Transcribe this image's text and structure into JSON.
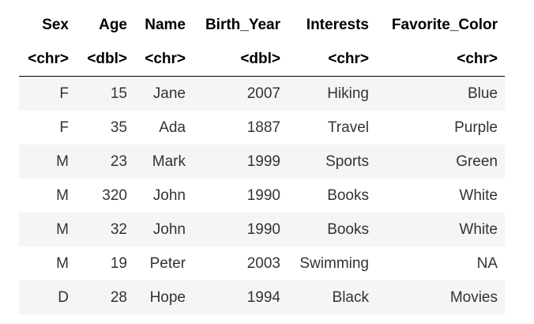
{
  "table": {
    "columns": [
      "Sex",
      "Age",
      "Name",
      "Birth_Year",
      "Interests",
      "Favorite_Color"
    ],
    "types": [
      "<chr>",
      "<dbl>",
      "<chr>",
      "<dbl>",
      "<chr>",
      "<chr>"
    ],
    "rows": [
      [
        "F",
        "15",
        "Jane",
        "2007",
        "Hiking",
        "Blue"
      ],
      [
        "F",
        "35",
        "Ada",
        "1887",
        "Travel",
        "Purple"
      ],
      [
        "M",
        "23",
        "Mark",
        "1999",
        "Sports",
        "Green"
      ],
      [
        "M",
        "320",
        "John",
        "1990",
        "Books",
        "White"
      ],
      [
        "M",
        "32",
        "John",
        "1990",
        "Books",
        "White"
      ],
      [
        "M",
        "19",
        "Peter",
        "2003",
        "Swimming",
        "NA"
      ],
      [
        "D",
        "28",
        "Hope",
        "1994",
        "Black",
        "Movies"
      ]
    ]
  }
}
